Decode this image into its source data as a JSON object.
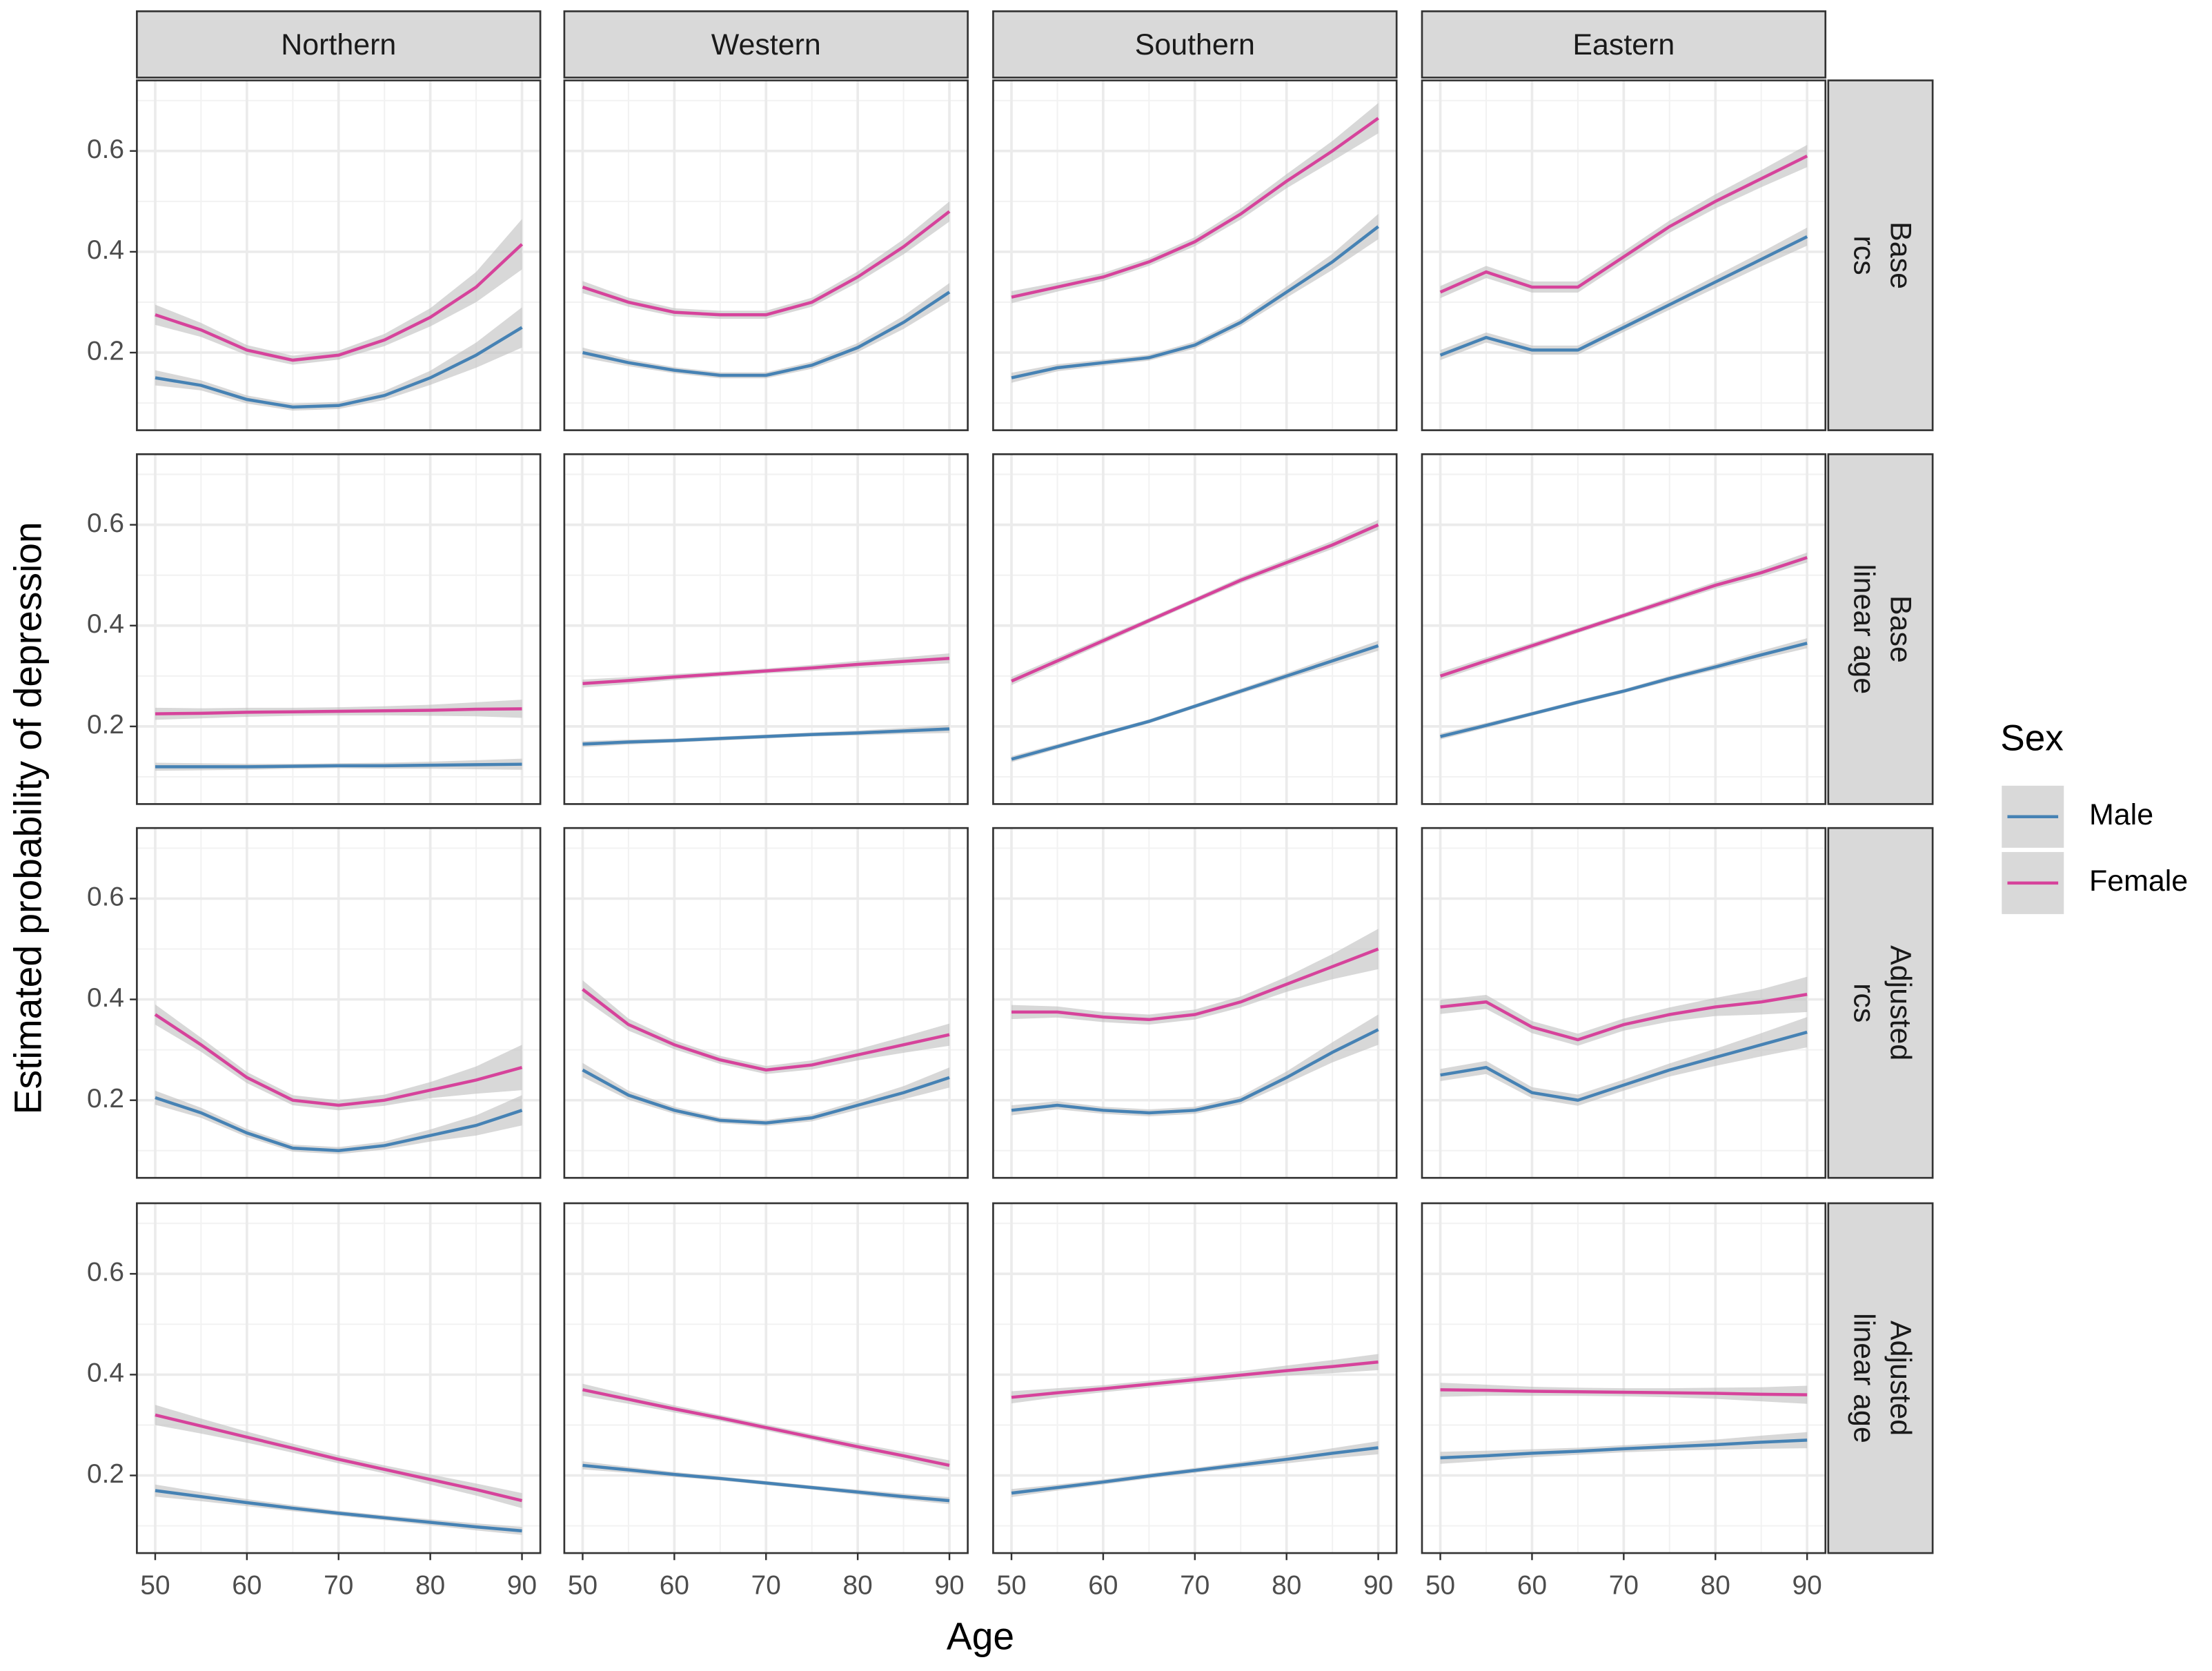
{
  "chart_data": {
    "type": "line",
    "x_label": "Age",
    "y_label": "Estimated probability of depression",
    "columns": [
      "Northern",
      "Western",
      "Southern",
      "Eastern"
    ],
    "rows": [
      [
        "Base",
        "rcs"
      ],
      [
        "Base",
        "linear age"
      ],
      [
        "Adjusted",
        "rcs"
      ],
      [
        "Adjusted",
        "linear age"
      ]
    ],
    "legend_title": "Sex",
    "series": [
      {
        "name": "Male",
        "color": "#4682b4"
      },
      {
        "name": "Female",
        "color": "#d6439b"
      }
    ],
    "band_color": "#bebebe",
    "x": [
      50,
      55,
      60,
      65,
      70,
      75,
      80,
      85,
      90
    ],
    "xlim": [
      48,
      92
    ],
    "xticks": [
      50,
      60,
      70,
      80,
      90
    ],
    "ylim": [
      0.046,
      0.74
    ],
    "yticks": [
      0.2,
      0.4,
      0.6
    ],
    "grid": true,
    "panels": [
      {
        "series": [
          {
            "values": [
              0.15,
              0.135,
              0.107,
              0.092,
              0.095,
              0.115,
              0.15,
              0.195,
              0.25
            ],
            "ci": [
              0.015,
              0.01,
              0.008,
              0.007,
              0.007,
              0.009,
              0.014,
              0.025,
              0.04
            ]
          },
          {
            "values": [
              0.275,
              0.245,
              0.205,
              0.185,
              0.195,
              0.225,
              0.27,
              0.33,
              0.415
            ],
            "ci": [
              0.02,
              0.014,
              0.01,
              0.009,
              0.009,
              0.012,
              0.018,
              0.03,
              0.05
            ]
          }
        ]
      },
      {
        "series": [
          {
            "values": [
              0.2,
              0.18,
              0.165,
              0.155,
              0.155,
              0.175,
              0.21,
              0.26,
              0.32
            ],
            "ci": [
              0.01,
              0.007,
              0.006,
              0.006,
              0.006,
              0.007,
              0.009,
              0.013,
              0.018
            ]
          },
          {
            "values": [
              0.33,
              0.3,
              0.28,
              0.275,
              0.275,
              0.3,
              0.35,
              0.41,
              0.48
            ],
            "ci": [
              0.012,
              0.009,
              0.008,
              0.008,
              0.008,
              0.009,
              0.011,
              0.015,
              0.02
            ]
          }
        ]
      },
      {
        "series": [
          {
            "values": [
              0.15,
              0.17,
              0.18,
              0.19,
              0.215,
              0.26,
              0.32,
              0.38,
              0.45
            ],
            "ci": [
              0.01,
              0.007,
              0.006,
              0.006,
              0.007,
              0.008,
              0.011,
              0.016,
              0.025
            ]
          },
          {
            "values": [
              0.31,
              0.33,
              0.35,
              0.38,
              0.42,
              0.475,
              0.54,
              0.6,
              0.665
            ],
            "ci": [
              0.012,
              0.009,
              0.008,
              0.008,
              0.009,
              0.011,
              0.014,
              0.02,
              0.03
            ]
          }
        ]
      },
      {
        "series": [
          {
            "values": [
              0.195,
              0.23,
              0.205,
              0.205,
              0.25,
              0.295,
              0.34,
              0.385,
              0.43
            ],
            "ci": [
              0.01,
              0.01,
              0.009,
              0.009,
              0.009,
              0.01,
              0.012,
              0.014,
              0.018
            ]
          },
          {
            "values": [
              0.32,
              0.36,
              0.33,
              0.33,
              0.39,
              0.45,
              0.5,
              0.545,
              0.59
            ],
            "ci": [
              0.012,
              0.012,
              0.011,
              0.011,
              0.011,
              0.012,
              0.014,
              0.017,
              0.022
            ]
          }
        ]
      },
      {
        "series": [
          {
            "values": [
              0.12,
              0.12,
              0.12,
              0.121,
              0.122,
              0.122,
              0.123,
              0.124,
              0.125
            ],
            "ci": [
              0.008,
              0.007,
              0.006,
              0.005,
              0.005,
              0.006,
              0.007,
              0.009,
              0.011
            ]
          },
          {
            "values": [
              0.225,
              0.226,
              0.228,
              0.229,
              0.23,
              0.231,
              0.232,
              0.234,
              0.235
            ],
            "ci": [
              0.012,
              0.01,
              0.009,
              0.008,
              0.008,
              0.009,
              0.011,
              0.014,
              0.018
            ]
          }
        ]
      },
      {
        "series": [
          {
            "values": [
              0.165,
              0.169,
              0.172,
              0.176,
              0.18,
              0.184,
              0.187,
              0.191,
              0.195
            ],
            "ci": [
              0.006,
              0.005,
              0.004,
              0.004,
              0.004,
              0.004,
              0.005,
              0.006,
              0.008
            ]
          },
          {
            "values": [
              0.285,
              0.291,
              0.298,
              0.304,
              0.31,
              0.316,
              0.323,
              0.329,
              0.335
            ],
            "ci": [
              0.008,
              0.007,
              0.006,
              0.005,
              0.005,
              0.006,
              0.007,
              0.008,
              0.01
            ]
          }
        ]
      },
      {
        "series": [
          {
            "values": [
              0.135,
              0.16,
              0.185,
              0.21,
              0.24,
              0.27,
              0.3,
              0.33,
              0.36
            ],
            "ci": [
              0.006,
              0.005,
              0.004,
              0.004,
              0.004,
              0.005,
              0.006,
              0.008,
              0.01
            ]
          },
          {
            "values": [
              0.29,
              0.33,
              0.37,
              0.41,
              0.45,
              0.49,
              0.525,
              0.56,
              0.6
            ],
            "ci": [
              0.008,
              0.007,
              0.006,
              0.005,
              0.005,
              0.006,
              0.007,
              0.008,
              0.01
            ]
          }
        ]
      },
      {
        "series": [
          {
            "values": [
              0.18,
              0.202,
              0.225,
              0.248,
              0.27,
              0.295,
              0.318,
              0.342,
              0.365
            ],
            "ci": [
              0.006,
              0.005,
              0.004,
              0.004,
              0.004,
              0.005,
              0.006,
              0.008,
              0.01
            ]
          },
          {
            "values": [
              0.3,
              0.33,
              0.36,
              0.39,
              0.42,
              0.45,
              0.48,
              0.505,
              0.535
            ],
            "ci": [
              0.008,
              0.007,
              0.006,
              0.005,
              0.005,
              0.006,
              0.007,
              0.008,
              0.01
            ]
          }
        ]
      },
      {
        "series": [
          {
            "values": [
              0.205,
              0.175,
              0.135,
              0.105,
              0.1,
              0.11,
              0.13,
              0.15,
              0.18
            ],
            "ci": [
              0.014,
              0.01,
              0.008,
              0.007,
              0.007,
              0.008,
              0.012,
              0.02,
              0.03
            ]
          },
          {
            "values": [
              0.37,
              0.31,
              0.245,
              0.2,
              0.19,
              0.2,
              0.22,
              0.24,
              0.265
            ],
            "ci": [
              0.02,
              0.014,
              0.011,
              0.01,
              0.01,
              0.011,
              0.016,
              0.027,
              0.045
            ]
          }
        ]
      },
      {
        "series": [
          {
            "values": [
              0.26,
              0.21,
              0.18,
              0.16,
              0.155,
              0.165,
              0.19,
              0.215,
              0.245
            ],
            "ci": [
              0.014,
              0.009,
              0.007,
              0.006,
              0.006,
              0.007,
              0.009,
              0.013,
              0.02
            ]
          },
          {
            "values": [
              0.42,
              0.35,
              0.31,
              0.28,
              0.26,
              0.27,
              0.29,
              0.31,
              0.33
            ],
            "ci": [
              0.018,
              0.012,
              0.009,
              0.008,
              0.008,
              0.009,
              0.011,
              0.016,
              0.022
            ]
          }
        ]
      },
      {
        "series": [
          {
            "values": [
              0.18,
              0.19,
              0.18,
              0.175,
              0.18,
              0.2,
              0.245,
              0.295,
              0.34
            ],
            "ci": [
              0.01,
              0.008,
              0.007,
              0.007,
              0.007,
              0.008,
              0.012,
              0.02,
              0.03
            ]
          },
          {
            "values": [
              0.375,
              0.375,
              0.365,
              0.36,
              0.37,
              0.395,
              0.43,
              0.465,
              0.5
            ],
            "ci": [
              0.014,
              0.011,
              0.01,
              0.01,
              0.01,
              0.011,
              0.015,
              0.025,
              0.04
            ]
          }
        ]
      },
      {
        "series": [
          {
            "values": [
              0.25,
              0.265,
              0.215,
              0.2,
              0.23,
              0.26,
              0.285,
              0.31,
              0.335
            ],
            "ci": [
              0.012,
              0.013,
              0.011,
              0.011,
              0.011,
              0.013,
              0.017,
              0.023,
              0.03
            ]
          },
          {
            "values": [
              0.385,
              0.395,
              0.345,
              0.32,
              0.35,
              0.37,
              0.385,
              0.395,
              0.41
            ],
            "ci": [
              0.014,
              0.014,
              0.012,
              0.012,
              0.012,
              0.014,
              0.018,
              0.025,
              0.035
            ]
          }
        ]
      },
      {
        "series": [
          {
            "values": [
              0.17,
              0.158,
              0.146,
              0.135,
              0.125,
              0.116,
              0.107,
              0.098,
              0.09
            ],
            "ci": [
              0.012,
              0.009,
              0.007,
              0.006,
              0.005,
              0.005,
              0.006,
              0.007,
              0.008
            ]
          },
          {
            "values": [
              0.32,
              0.298,
              0.276,
              0.254,
              0.232,
              0.212,
              0.192,
              0.172,
              0.15
            ],
            "ci": [
              0.02,
              0.015,
              0.011,
              0.009,
              0.008,
              0.008,
              0.01,
              0.012,
              0.015
            ]
          }
        ]
      },
      {
        "series": [
          {
            "values": [
              0.22,
              0.211,
              0.202,
              0.194,
              0.185,
              0.176,
              0.167,
              0.158,
              0.15
            ],
            "ci": [
              0.008,
              0.006,
              0.005,
              0.004,
              0.004,
              0.004,
              0.005,
              0.006,
              0.007
            ]
          },
          {
            "values": [
              0.37,
              0.351,
              0.332,
              0.314,
              0.295,
              0.276,
              0.257,
              0.239,
              0.22
            ],
            "ci": [
              0.012,
              0.009,
              0.007,
              0.006,
              0.006,
              0.006,
              0.007,
              0.008,
              0.01
            ]
          }
        ]
      },
      {
        "series": [
          {
            "values": [
              0.165,
              0.176,
              0.187,
              0.199,
              0.21,
              0.221,
              0.232,
              0.244,
              0.255
            ],
            "ci": [
              0.008,
              0.006,
              0.005,
              0.005,
              0.005,
              0.006,
              0.008,
              0.01,
              0.013
            ]
          },
          {
            "values": [
              0.355,
              0.364,
              0.372,
              0.381,
              0.39,
              0.399,
              0.408,
              0.416,
              0.425
            ],
            "ci": [
              0.012,
              0.009,
              0.007,
              0.007,
              0.007,
              0.008,
              0.01,
              0.013,
              0.016
            ]
          }
        ]
      },
      {
        "series": [
          {
            "values": [
              0.235,
              0.239,
              0.244,
              0.248,
              0.253,
              0.257,
              0.261,
              0.266,
              0.27
            ],
            "ci": [
              0.012,
              0.01,
              0.008,
              0.007,
              0.007,
              0.008,
              0.01,
              0.013,
              0.016
            ]
          },
          {
            "values": [
              0.37,
              0.369,
              0.367,
              0.366,
              0.365,
              0.364,
              0.363,
              0.361,
              0.36
            ],
            "ci": [
              0.014,
              0.011,
              0.009,
              0.008,
              0.008,
              0.009,
              0.011,
              0.014,
              0.018
            ]
          }
        ]
      }
    ]
  }
}
